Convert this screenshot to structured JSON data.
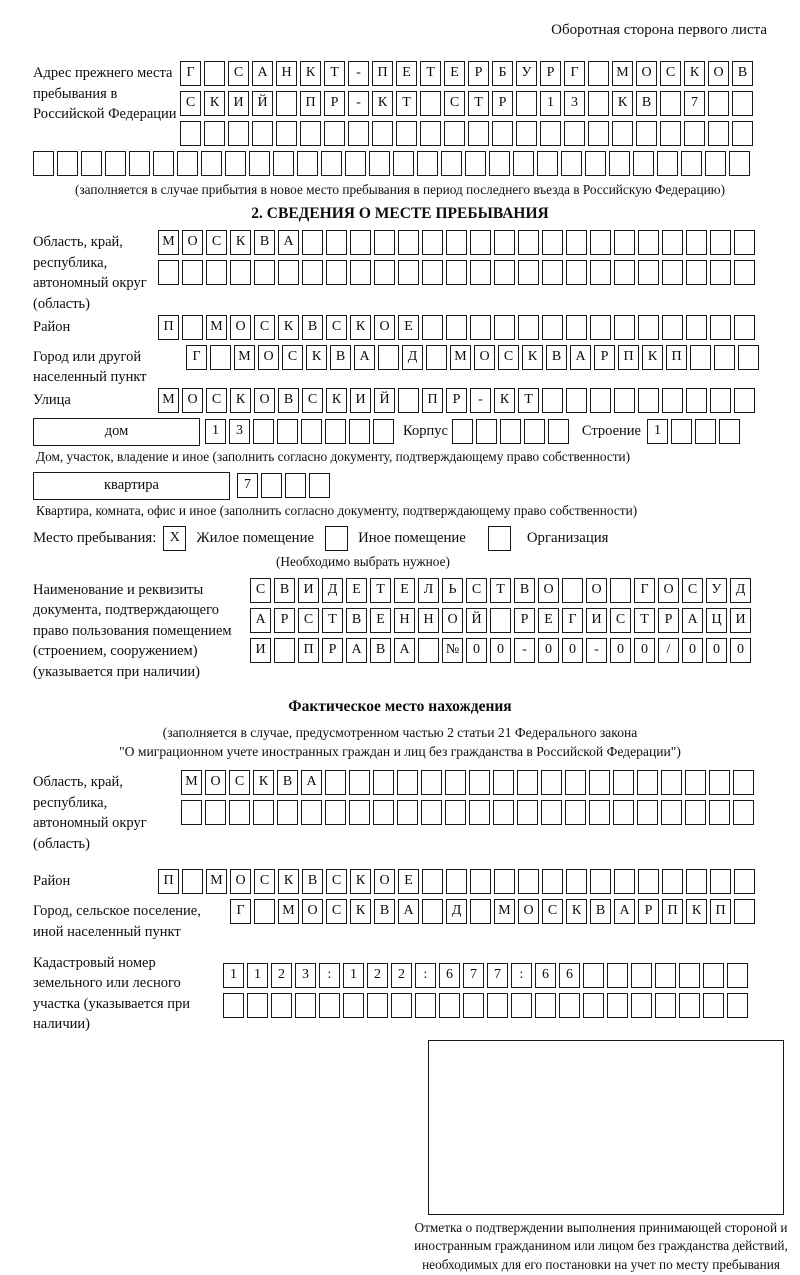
{
  "page": {
    "header_note": "Оборотная сторона первого листа"
  },
  "prev_address": {
    "label": "Адрес прежнего места пребывания в Российской Федерации",
    "rows": [
      {
        "n": 24,
        "t": "Г САНКТ-ПЕТЕРБУРГ МОСКОВ"
      },
      {
        "n": 24,
        "t": "СКИЙ ПР-КТ СТР 13 КВ 7"
      },
      {
        "n": 24,
        "t": ""
      },
      {
        "n": 30,
        "t": ""
      }
    ],
    "caption": "(заполняется в случае прибытия в новое место пребывания в период последнего въезда в Российскую Федерацию)"
  },
  "section2": {
    "title": "2. СВЕДЕНИЯ О МЕСТЕ ПРЕБЫВАНИЯ",
    "region": {
      "label": "Область, край, республика, автономный округ (область)",
      "rows": [
        {
          "n": 25,
          "t": "МОСКВА"
        },
        {
          "n": 25,
          "t": ""
        }
      ]
    },
    "district": {
      "label": "Район",
      "row": {
        "n": 25,
        "t": "П МОСКВСКОЕ"
      }
    },
    "city": {
      "label": "Город или другой населенный пункт",
      "row": {
        "n": 24,
        "t": "Г МОСКВА Д МОСКВАРПКП"
      }
    },
    "street": {
      "label": "Улица",
      "row": {
        "n": 25,
        "t": "МОСКОВСКИЙ ПР-КТ"
      }
    },
    "house": {
      "box_label": "дом",
      "house_cells": {
        "n": 8,
        "t": "13"
      },
      "korpus_label": "Корпус",
      "korpus_cells": {
        "n": 5,
        "t": ""
      },
      "stroenie_label": "Строение",
      "stroenie_cells": {
        "n": 4,
        "t": "1"
      },
      "caption": "Дом, участок, владение и иное (заполнить согласно документу, подтверждающему право собственности)"
    },
    "apartment": {
      "box_label": "квартира",
      "cells": {
        "n": 4,
        "t": "7"
      },
      "caption": "Квартира, комната, офис и иное (заполнить согласно документу, подтверждающему право собственности)"
    },
    "stay_type": {
      "label": "Место пребывания:",
      "options": [
        {
          "mark": "X",
          "label": "Жилое помещение"
        },
        {
          "mark": "",
          "label": "Иное помещение"
        },
        {
          "mark": "",
          "label": "Организация"
        }
      ],
      "caption": "(Необходимо выбрать нужное)"
    },
    "document": {
      "label": "Наименование и реквизиты документа, подтверждающего право пользования помещением (строением, сооружением) (указывается при наличии)",
      "rows": [
        {
          "n": 21,
          "t": "СВИДЕТЕЛЬСТВО О ГОСУД"
        },
        {
          "n": 21,
          "t": "АРСТВЕННОЙ РЕГИСТРАЦИ"
        },
        {
          "n": 21,
          "t": "И ПРАВА №00-00-00/000"
        }
      ]
    }
  },
  "actual_location": {
    "title": "Фактическое место нахождения",
    "note1": "(заполняется в случае, предусмотренном частью 2 статьи 21 Федерального закона",
    "note2": "\"О миграционном учете иностранных граждан и лиц без гражданства в Российской Федерации\")",
    "region": {
      "label": "Область, край, республика, автономный округ (область)",
      "rows": [
        {
          "n": 24,
          "t": "МОСКВА"
        },
        {
          "n": 24,
          "t": ""
        }
      ]
    },
    "district": {
      "label": "Район",
      "row": {
        "n": 25,
        "t": "П МОСКВСКОЕ"
      }
    },
    "city": {
      "label": "Город, сельское поселение, иной населенный пункт",
      "row": {
        "n": 22,
        "t": "Г МОСКВА Д МОСКВАРПКП"
      }
    },
    "cadastral": {
      "label": "Кадастровый номер земельного или лесного участка (указывается при наличии)",
      "rows": [
        {
          "n": 22,
          "t": "1123:122:677:66"
        },
        {
          "n": 22,
          "t": ""
        }
      ]
    },
    "stamp_caption": "Отметка о подтверждении выполнения принимающей стороной и иностранным гражданином или лицом без гражданства действий, необходимых для его постановки на учет по месту пребывания"
  }
}
